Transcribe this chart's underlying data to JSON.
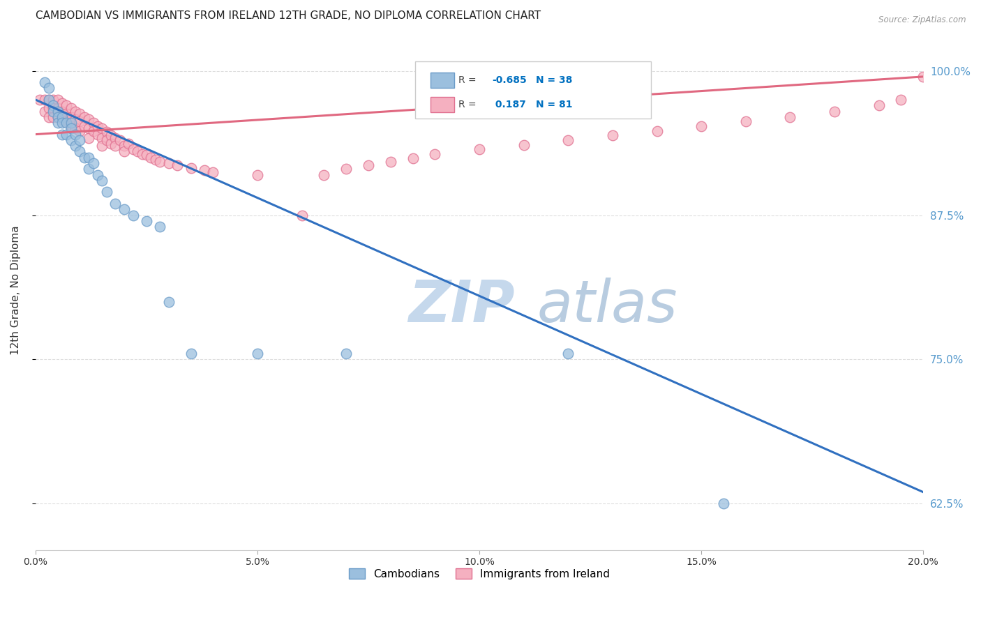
{
  "title": "CAMBODIAN VS IMMIGRANTS FROM IRELAND 12TH GRADE, NO DIPLOMA CORRELATION CHART",
  "source": "Source: ZipAtlas.com",
  "xlabel_ticks": [
    "0.0%",
    "5.0%",
    "10.0%",
    "15.0%",
    "20.0%"
  ],
  "xlabel_tick_vals": [
    0.0,
    0.05,
    0.1,
    0.15,
    0.2
  ],
  "ylabel_ticks": [
    "62.5%",
    "75.0%",
    "87.5%",
    "100.0%"
  ],
  "ylabel_tick_vals": [
    0.625,
    0.75,
    0.875,
    1.0
  ],
  "xmin": 0.0,
  "xmax": 0.2,
  "ymin": 0.585,
  "ymax": 1.035,
  "cambodian_R": -0.685,
  "cambodian_N": 38,
  "ireland_R": 0.187,
  "ireland_N": 81,
  "cambodian_color": "#9BBFDE",
  "cambodian_edge": "#6A9BC8",
  "ireland_color": "#F5B0C0",
  "ireland_edge": "#E07090",
  "cambodian_line_color": "#3070C0",
  "ireland_line_color": "#E06880",
  "watermark_zip_color": "#C5D8EC",
  "watermark_atlas_color": "#B8CCE0",
  "background_color": "#FFFFFF",
  "grid_color": "#DDDDDD",
  "right_label_color": "#5599CC",
  "legend_R_color": "#0070C0",
  "cambodian_scatter_x": [
    0.002,
    0.003,
    0.003,
    0.004,
    0.004,
    0.005,
    0.005,
    0.005,
    0.006,
    0.006,
    0.006,
    0.007,
    0.007,
    0.008,
    0.008,
    0.008,
    0.009,
    0.009,
    0.01,
    0.01,
    0.011,
    0.012,
    0.012,
    0.013,
    0.014,
    0.015,
    0.016,
    0.018,
    0.02,
    0.022,
    0.025,
    0.028,
    0.03,
    0.035,
    0.05,
    0.07,
    0.12,
    0.155
  ],
  "cambodian_scatter_y": [
    0.99,
    0.985,
    0.975,
    0.97,
    0.965,
    0.965,
    0.96,
    0.955,
    0.96,
    0.955,
    0.945,
    0.955,
    0.945,
    0.955,
    0.95,
    0.94,
    0.945,
    0.935,
    0.94,
    0.93,
    0.925,
    0.925,
    0.915,
    0.92,
    0.91,
    0.905,
    0.895,
    0.885,
    0.88,
    0.875,
    0.87,
    0.865,
    0.8,
    0.755,
    0.755,
    0.755,
    0.755,
    0.625
  ],
  "ireland_scatter_x": [
    0.001,
    0.002,
    0.002,
    0.003,
    0.003,
    0.003,
    0.004,
    0.004,
    0.004,
    0.005,
    0.005,
    0.005,
    0.006,
    0.006,
    0.006,
    0.007,
    0.007,
    0.007,
    0.008,
    0.008,
    0.008,
    0.009,
    0.009,
    0.009,
    0.01,
    0.01,
    0.01,
    0.011,
    0.011,
    0.012,
    0.012,
    0.012,
    0.013,
    0.013,
    0.014,
    0.014,
    0.015,
    0.015,
    0.015,
    0.016,
    0.016,
    0.017,
    0.017,
    0.018,
    0.018,
    0.019,
    0.02,
    0.02,
    0.021,
    0.022,
    0.023,
    0.024,
    0.025,
    0.026,
    0.027,
    0.028,
    0.03,
    0.032,
    0.035,
    0.038,
    0.04,
    0.05,
    0.06,
    0.065,
    0.07,
    0.075,
    0.08,
    0.085,
    0.09,
    0.1,
    0.11,
    0.12,
    0.13,
    0.14,
    0.15,
    0.16,
    0.17,
    0.18,
    0.19,
    0.195,
    0.2
  ],
  "ireland_scatter_y": [
    0.975,
    0.975,
    0.965,
    0.975,
    0.968,
    0.96,
    0.975,
    0.968,
    0.96,
    0.975,
    0.968,
    0.96,
    0.972,
    0.965,
    0.958,
    0.97,
    0.963,
    0.956,
    0.968,
    0.96,
    0.952,
    0.965,
    0.958,
    0.95,
    0.963,
    0.956,
    0.948,
    0.96,
    0.952,
    0.958,
    0.95,
    0.942,
    0.955,
    0.948,
    0.952,
    0.945,
    0.95,
    0.942,
    0.935,
    0.947,
    0.94,
    0.944,
    0.937,
    0.942,
    0.935,
    0.94,
    0.935,
    0.93,
    0.937,
    0.932,
    0.93,
    0.928,
    0.927,
    0.925,
    0.923,
    0.921,
    0.92,
    0.918,
    0.916,
    0.914,
    0.912,
    0.91,
    0.875,
    0.91,
    0.915,
    0.918,
    0.921,
    0.924,
    0.928,
    0.932,
    0.936,
    0.94,
    0.944,
    0.948,
    0.952,
    0.956,
    0.96,
    0.965,
    0.97,
    0.975,
    0.995
  ],
  "cambodian_line_x": [
    0.0,
    0.2
  ],
  "cambodian_line_y": [
    0.975,
    0.635
  ],
  "ireland_line_x": [
    0.0,
    0.2
  ],
  "ireland_line_y": [
    0.945,
    0.995
  ],
  "title_fontsize": 11,
  "axis_fontsize": 10,
  "legend_fontsize": 10,
  "marker_size": 110
}
